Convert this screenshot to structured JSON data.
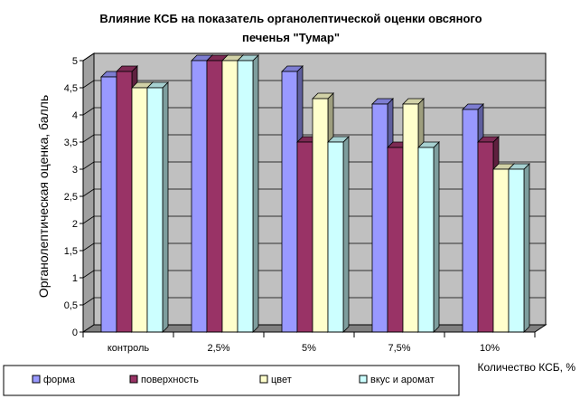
{
  "chart_data": {
    "type": "bar",
    "title_line1": "Влияние КСБ на показатель органолептической оценки овсяного",
    "title_line2": "печенья \"Тумар\"",
    "ylabel": "Органолептическая оценка, балль",
    "xlabel": "Количество КСБ, %",
    "ylim": [
      0,
      5
    ],
    "yticks": [
      "0",
      "0,5",
      "1",
      "1,5",
      "2",
      "2,5",
      "3",
      "3,5",
      "4",
      "4,5",
      "5"
    ],
    "categories": [
      "контроль",
      "2,5%",
      "5%",
      "7,5%",
      "10%"
    ],
    "series": [
      {
        "name": "форма",
        "values": [
          4.7,
          5.0,
          4.8,
          4.2,
          4.1
        ],
        "color": "#9999FF"
      },
      {
        "name": "поверхность",
        "values": [
          4.8,
          5.0,
          3.5,
          3.4,
          3.5
        ],
        "color": "#993366"
      },
      {
        "name": "цвет",
        "values": [
          4.5,
          5.0,
          4.3,
          4.2,
          3.0
        ],
        "color": "#FFFFCC"
      },
      {
        "name": "вкус и аромат",
        "values": [
          4.5,
          5.0,
          3.5,
          3.4,
          3.0
        ],
        "color": "#CCFFFF"
      }
    ],
    "grid": true,
    "legend_position": "bottom",
    "background_color": "#C0C0C0"
  }
}
